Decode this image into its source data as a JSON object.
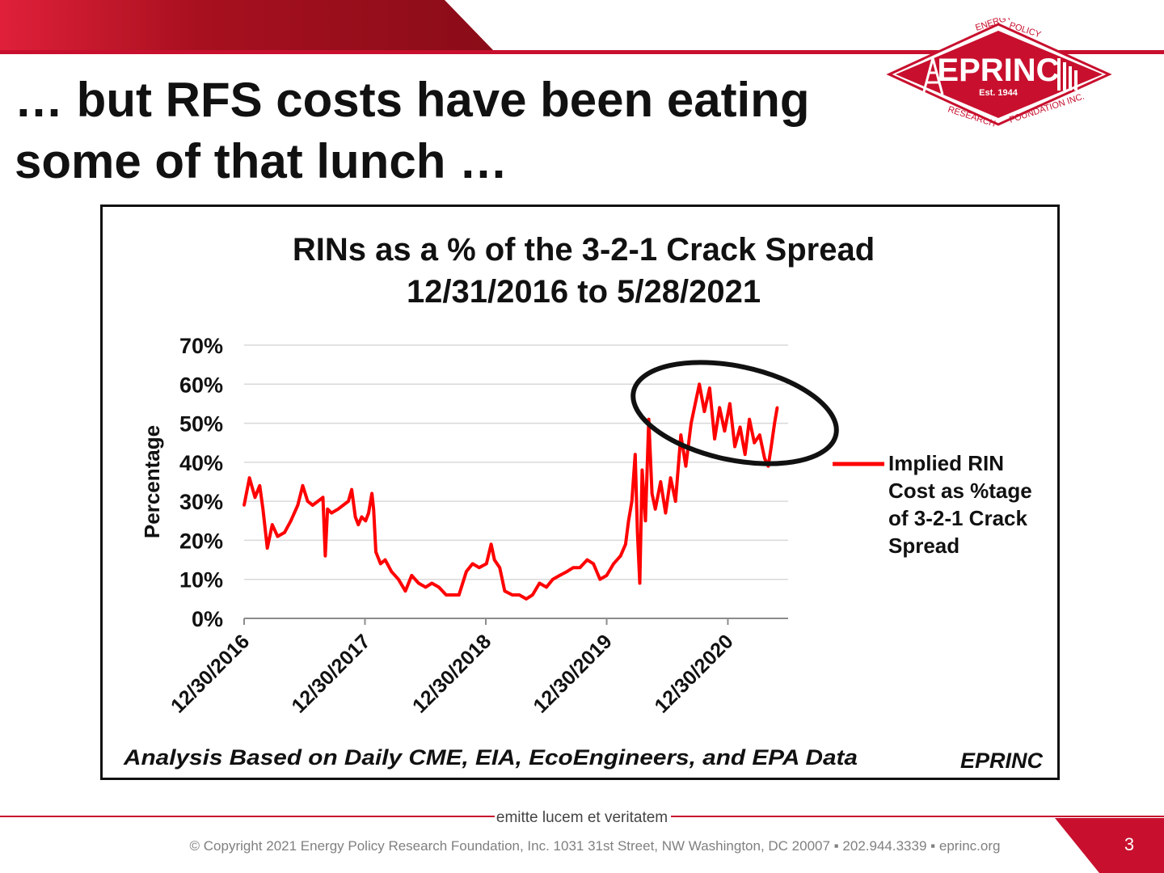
{
  "header": {
    "title_line1": "… but RFS costs have been eating",
    "title_line2": "some of that lunch …"
  },
  "logo": {
    "name": "EPRINC",
    "est": "Est. 1944",
    "word_energy": "ENERGY",
    "word_policy": "POLICY",
    "word_research": "RESEARCH",
    "word_foundation": "FOUNDATION INC."
  },
  "footer": {
    "motto": "emitte lucem et veritatem",
    "copyright": "© Copyright 2021 Energy Policy Research Foundation, Inc. 1031 31st Street, NW Washington, DC 20007 ▪ 202.944.3339 ▪ eprinc.org",
    "page_number": "3"
  },
  "colors": {
    "brand_red": "#c8102e",
    "series_red": "#ff0000",
    "grid": "#d9d9d9",
    "text": "#111111"
  },
  "chart_data": {
    "type": "line",
    "title": "RINs as a % of the 3-2-1 Crack Spread",
    "subtitle": "12/31/2016 to 5/28/2021",
    "ylabel": "Percentage",
    "xlabel": "",
    "ylim": [
      0,
      70
    ],
    "yticks": [
      "0%",
      "10%",
      "20%",
      "30%",
      "40%",
      "50%",
      "60%",
      "70%"
    ],
    "xticks": [
      "12/30/2016",
      "12/30/2017",
      "12/30/2018",
      "12/30/2019",
      "12/30/2020"
    ],
    "grid": true,
    "legend_position": "right",
    "series": [
      {
        "name": "Implied RIN Cost as %tage of 3-2-1 Crack Spread",
        "color": "#ff0000",
        "points": [
          [
            "2016-12-30",
            29
          ],
          [
            "2017-01-15",
            36
          ],
          [
            "2017-02-01",
            31
          ],
          [
            "2017-02-15",
            34
          ],
          [
            "2017-02-25",
            28
          ],
          [
            "2017-03-10",
            18
          ],
          [
            "2017-03-25",
            24
          ],
          [
            "2017-04-10",
            21
          ],
          [
            "2017-05-01",
            22
          ],
          [
            "2017-05-20",
            25
          ],
          [
            "2017-06-10",
            29
          ],
          [
            "2017-06-25",
            34
          ],
          [
            "2017-07-10",
            30
          ],
          [
            "2017-07-25",
            29
          ],
          [
            "2017-08-10",
            30
          ],
          [
            "2017-08-25",
            31
          ],
          [
            "2017-09-01",
            16
          ],
          [
            "2017-09-08",
            28
          ],
          [
            "2017-09-20",
            27
          ],
          [
            "2017-10-10",
            28
          ],
          [
            "2017-10-25",
            29
          ],
          [
            "2017-11-10",
            30
          ],
          [
            "2017-11-20",
            33
          ],
          [
            "2017-12-01",
            26
          ],
          [
            "2017-12-10",
            24
          ],
          [
            "2017-12-20",
            26
          ],
          [
            "2018-01-01",
            25
          ],
          [
            "2018-01-10",
            27
          ],
          [
            "2018-01-20",
            32
          ],
          [
            "2018-01-25",
            28
          ],
          [
            "2018-02-01",
            17
          ],
          [
            "2018-02-15",
            14
          ],
          [
            "2018-03-01",
            15
          ],
          [
            "2018-03-20",
            12
          ],
          [
            "2018-04-10",
            10
          ],
          [
            "2018-05-01",
            7
          ],
          [
            "2018-05-20",
            11
          ],
          [
            "2018-06-10",
            9
          ],
          [
            "2018-07-01",
            8
          ],
          [
            "2018-07-20",
            9
          ],
          [
            "2018-08-10",
            8
          ],
          [
            "2018-09-01",
            6
          ],
          [
            "2018-09-20",
            6
          ],
          [
            "2018-10-10",
            6
          ],
          [
            "2018-11-01",
            12
          ],
          [
            "2018-11-20",
            14
          ],
          [
            "2018-12-10",
            13
          ],
          [
            "2019-01-01",
            14
          ],
          [
            "2019-01-15",
            19
          ],
          [
            "2019-01-25",
            15
          ],
          [
            "2019-02-10",
            13
          ],
          [
            "2019-02-25",
            7
          ],
          [
            "2019-03-20",
            6
          ],
          [
            "2019-04-10",
            6
          ],
          [
            "2019-05-01",
            5
          ],
          [
            "2019-05-20",
            6
          ],
          [
            "2019-06-10",
            9
          ],
          [
            "2019-07-01",
            8
          ],
          [
            "2019-07-20",
            10
          ],
          [
            "2019-08-10",
            11
          ],
          [
            "2019-09-01",
            12
          ],
          [
            "2019-09-20",
            13
          ],
          [
            "2019-10-10",
            13
          ],
          [
            "2019-11-01",
            15
          ],
          [
            "2019-11-20",
            14
          ],
          [
            "2019-12-10",
            10
          ],
          [
            "2019-12-30",
            11
          ],
          [
            "2020-01-20",
            14
          ],
          [
            "2020-02-10",
            16
          ],
          [
            "2020-02-25",
            19
          ],
          [
            "2020-03-05",
            25
          ],
          [
            "2020-03-15",
            30
          ],
          [
            "2020-03-25",
            42
          ],
          [
            "2020-04-01",
            22
          ],
          [
            "2020-04-08",
            9
          ],
          [
            "2020-04-15",
            38
          ],
          [
            "2020-04-25",
            25
          ],
          [
            "2020-05-05",
            51
          ],
          [
            "2020-05-15",
            32
          ],
          [
            "2020-05-25",
            28
          ],
          [
            "2020-06-10",
            35
          ],
          [
            "2020-06-25",
            27
          ],
          [
            "2020-07-10",
            36
          ],
          [
            "2020-07-25",
            30
          ],
          [
            "2020-08-10",
            47
          ],
          [
            "2020-08-25",
            39
          ],
          [
            "2020-09-10",
            50
          ],
          [
            "2020-09-25",
            56
          ],
          [
            "2020-10-05",
            60
          ],
          [
            "2020-10-20",
            53
          ],
          [
            "2020-11-05",
            59
          ],
          [
            "2020-11-20",
            46
          ],
          [
            "2020-12-05",
            54
          ],
          [
            "2020-12-20",
            48
          ],
          [
            "2021-01-05",
            55
          ],
          [
            "2021-01-20",
            44
          ],
          [
            "2021-02-05",
            49
          ],
          [
            "2021-02-20",
            42
          ],
          [
            "2021-03-05",
            51
          ],
          [
            "2021-03-20",
            45
          ],
          [
            "2021-04-05",
            47
          ],
          [
            "2021-04-20",
            41
          ],
          [
            "2021-05-01",
            39
          ],
          [
            "2021-05-10",
            44
          ],
          [
            "2021-05-20",
            50
          ],
          [
            "2021-05-28",
            54
          ]
        ]
      }
    ],
    "annotations": [
      {
        "type": "ellipse",
        "label": ""
      }
    ],
    "footnote": "Analysis Based on Daily CME, EIA, EcoEngineers, and EPA Data",
    "source_tag": "EPRINC"
  }
}
